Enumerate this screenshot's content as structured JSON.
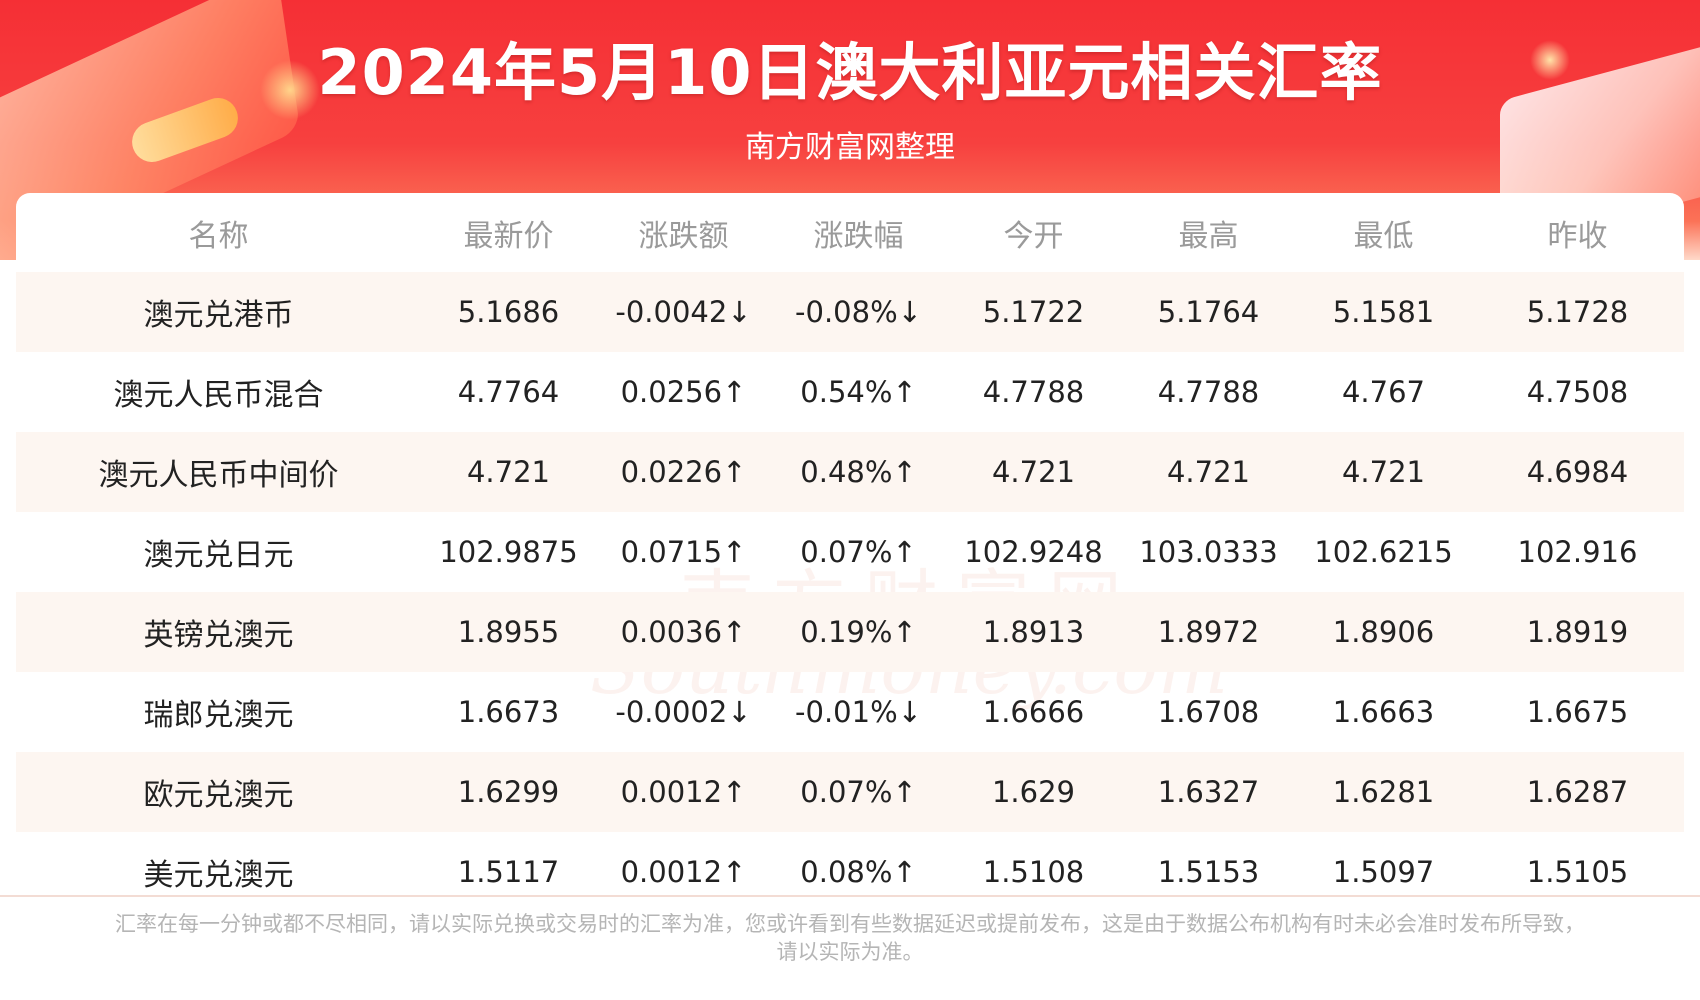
{
  "header": {
    "title": "2024年5月10日澳大利亚元相关汇率",
    "subtitle": "南方财富网整理"
  },
  "table": {
    "columns": [
      "名称",
      "最新价",
      "涨跌额",
      "涨跌幅",
      "今开",
      "最高",
      "最低",
      "昨收"
    ],
    "rows": [
      {
        "name": "澳元兑港币",
        "latest": "5.1686",
        "change": "-0.0042↓",
        "pct": "-0.08%↓",
        "open": "5.1722",
        "high": "5.1764",
        "low": "5.1581",
        "prev_close": "5.1728",
        "direction": "down"
      },
      {
        "name": "澳元人民币混合",
        "latest": "4.7764",
        "change": "0.0256↑",
        "pct": "0.54%↑",
        "open": "4.7788",
        "high": "4.7788",
        "low": "4.767",
        "prev_close": "4.7508",
        "direction": "up"
      },
      {
        "name": "澳元人民币中间价",
        "latest": "4.721",
        "change": "0.0226↑",
        "pct": "0.48%↑",
        "open": "4.721",
        "high": "4.721",
        "low": "4.721",
        "prev_close": "4.6984",
        "direction": "up"
      },
      {
        "name": "澳元兑日元",
        "latest": "102.9875",
        "change": "0.0715↑",
        "pct": "0.07%↑",
        "open": "102.9248",
        "high": "103.0333",
        "low": "102.6215",
        "prev_close": "102.916",
        "direction": "up"
      },
      {
        "name": "英镑兑澳元",
        "latest": "1.8955",
        "change": "0.0036↑",
        "pct": "0.19%↑",
        "open": "1.8913",
        "high": "1.8972",
        "low": "1.8906",
        "prev_close": "1.8919",
        "direction": "up"
      },
      {
        "name": "瑞郎兑澳元",
        "latest": "1.6673",
        "change": "-0.0002↓",
        "pct": "-0.01%↓",
        "open": "1.6666",
        "high": "1.6708",
        "low": "1.6663",
        "prev_close": "1.6675",
        "direction": "down"
      },
      {
        "name": "欧元兑澳元",
        "latest": "1.6299",
        "change": "0.0012↑",
        "pct": "0.07%↑",
        "open": "1.629",
        "high": "1.6327",
        "low": "1.6281",
        "prev_close": "1.6287",
        "direction": "up"
      },
      {
        "name": "美元兑澳元",
        "latest": "1.5117",
        "change": "0.0012↑",
        "pct": "0.08%↑",
        "open": "1.5108",
        "high": "1.5153",
        "low": "1.5097",
        "prev_close": "1.5105",
        "direction": "up"
      }
    ]
  },
  "watermark": {
    "cn": "南方财富网",
    "en": "Southmoney.com"
  },
  "footer": {
    "note_line1": "汇率在每一分钟或都不尽相同，请以实际兑换或交易时的汇率为准，您或许看到有些数据延迟或提前发布，这是由于数据公布机构有时未必会准时发布所导致，",
    "note_line2": "请以实际为准。"
  },
  "colors": {
    "banner_red": "#f52f35",
    "up": "#ee2222",
    "down": "#1e8c1e",
    "stripe": "#fdf6f1",
    "header_text": "#9a9a9a"
  }
}
